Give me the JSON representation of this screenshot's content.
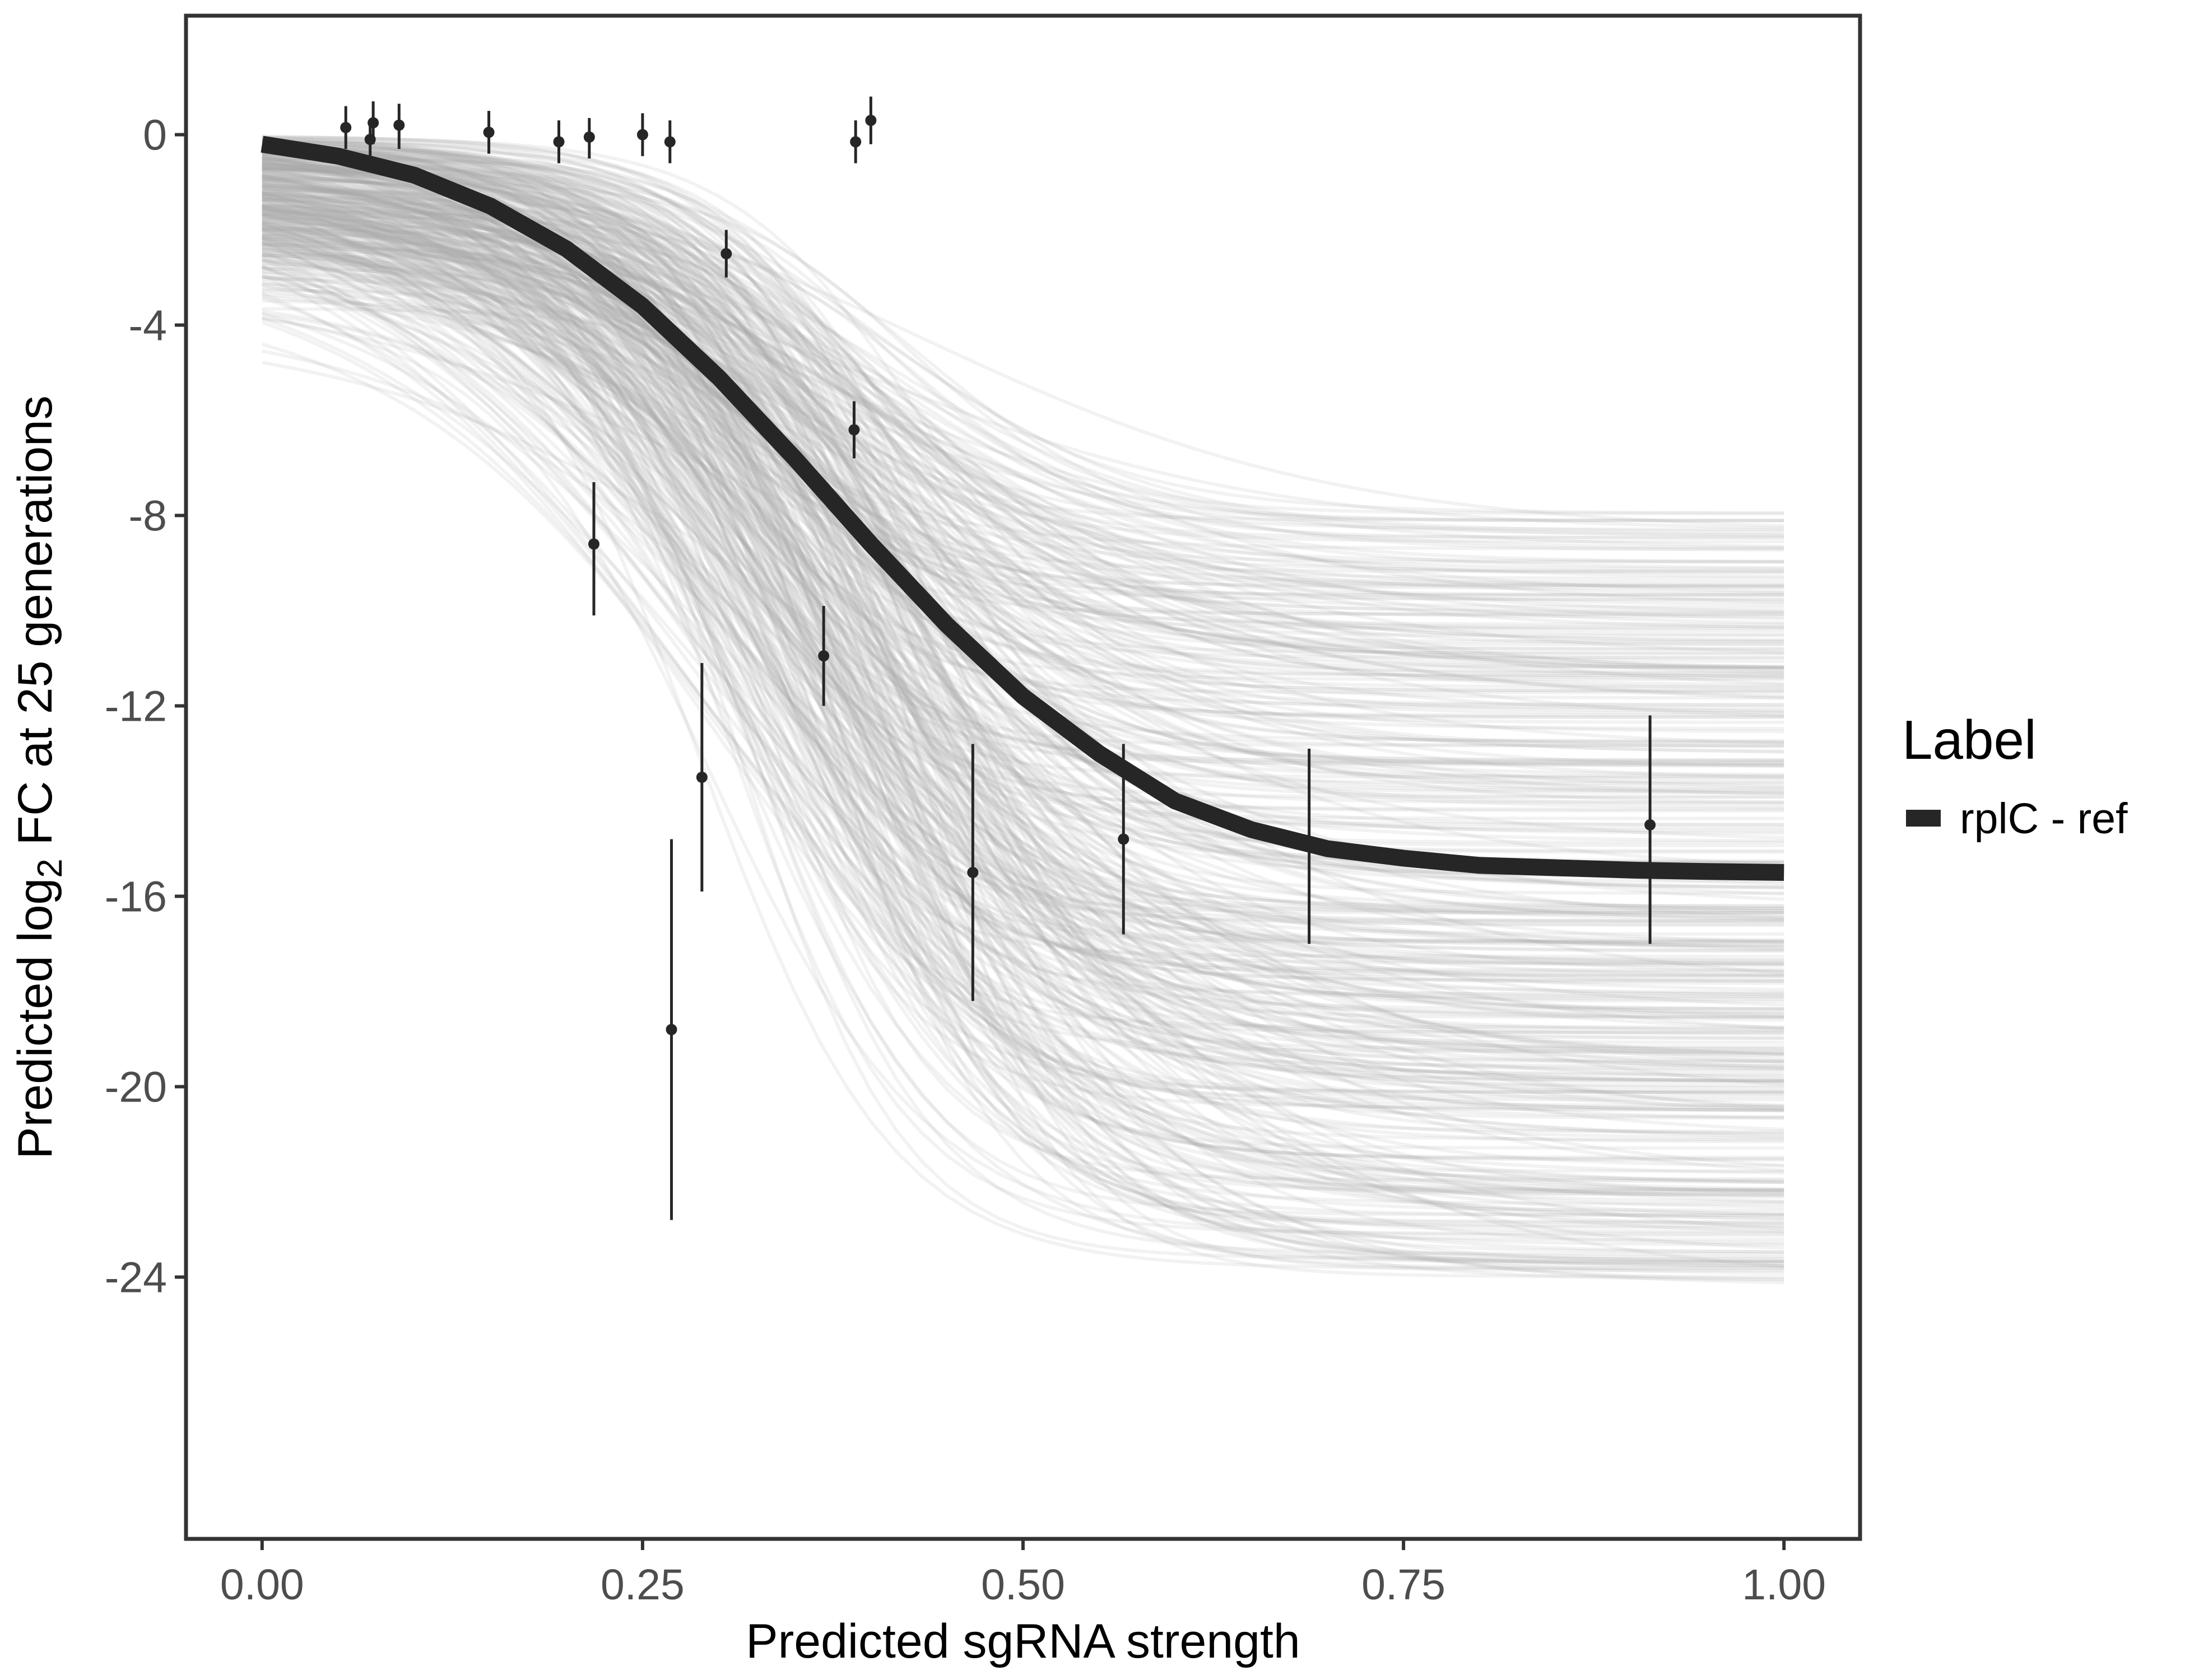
{
  "chart_data": {
    "type": "line",
    "xlabel": "Predicted sgRNA strength",
    "ylabel_parts": {
      "before": "Predicted  log",
      "subscript": "2",
      "after": " FC at 25 generations"
    },
    "xlim": [
      -0.05,
      1.05
    ],
    "ylim": [
      -29.5,
      2.5
    ],
    "x_ticks": [
      0.0,
      0.25,
      0.5,
      0.75,
      1.0
    ],
    "x_tick_labels": [
      "0.00",
      "0.25",
      "0.50",
      "0.75",
      "1.00"
    ],
    "y_ticks": [
      0,
      -4,
      -8,
      -12,
      -16,
      -20,
      -24
    ],
    "y_tick_labels": [
      "0",
      "-4",
      "-8",
      "-12",
      "-16",
      "-20",
      "-24"
    ],
    "grid": false,
    "legend": {
      "title": "Label",
      "position": "right",
      "entries": [
        {
          "label": "rplC - ref",
          "color": "#262626"
        }
      ]
    },
    "fit_curve": {
      "name": "rplC - ref",
      "color": "#262626",
      "x": [
        0.0,
        0.05,
        0.1,
        0.15,
        0.2,
        0.25,
        0.3,
        0.35,
        0.4,
        0.45,
        0.5,
        0.55,
        0.6,
        0.65,
        0.7,
        0.75,
        0.8,
        0.85,
        0.9,
        0.95,
        1.0
      ],
      "y": [
        -0.2,
        -0.45,
        -0.85,
        -1.5,
        -2.4,
        -3.6,
        -5.1,
        -6.8,
        -8.6,
        -10.3,
        -11.8,
        -13.0,
        -14.0,
        -14.6,
        -15.0,
        -15.2,
        -15.35,
        -15.4,
        -15.45,
        -15.48,
        -15.5
      ]
    },
    "posterior_draws": {
      "color": "#aaaaaa",
      "opacity": 0.15,
      "count": 400,
      "y_at_x0_range": [
        -4.5,
        0.0
      ],
      "y_at_x1_range": [
        -24.2,
        -7.8
      ]
    },
    "points": [
      {
        "x": 0.055,
        "y": 0.15,
        "ymin": -0.3,
        "ymax": 0.6
      },
      {
        "x": 0.071,
        "y": -0.1,
        "ymin": -0.5,
        "ymax": 0.3
      },
      {
        "x": 0.073,
        "y": 0.25,
        "ymin": -0.2,
        "ymax": 0.7
      },
      {
        "x": 0.09,
        "y": 0.2,
        "ymin": -0.3,
        "ymax": 0.65
      },
      {
        "x": 0.149,
        "y": 0.05,
        "ymin": -0.4,
        "ymax": 0.5
      },
      {
        "x": 0.195,
        "y": -0.15,
        "ymin": -0.6,
        "ymax": 0.3
      },
      {
        "x": 0.215,
        "y": -0.05,
        "ymin": -0.5,
        "ymax": 0.35
      },
      {
        "x": 0.218,
        "y": -8.6,
        "ymin": -10.1,
        "ymax": -7.3
      },
      {
        "x": 0.25,
        "y": 0.0,
        "ymin": -0.45,
        "ymax": 0.45
      },
      {
        "x": 0.268,
        "y": -0.15,
        "ymin": -0.6,
        "ymax": 0.3
      },
      {
        "x": 0.269,
        "y": -18.8,
        "ymin": -22.8,
        "ymax": -14.8
      },
      {
        "x": 0.289,
        "y": -13.5,
        "ymin": -15.9,
        "ymax": -11.1
      },
      {
        "x": 0.305,
        "y": -2.5,
        "ymin": -3.0,
        "ymax": -2.0
      },
      {
        "x": 0.369,
        "y": -10.95,
        "ymin": -12.0,
        "ymax": -9.9
      },
      {
        "x": 0.389,
        "y": -6.2,
        "ymin": -6.8,
        "ymax": -5.6
      },
      {
        "x": 0.39,
        "y": -0.15,
        "ymin": -0.6,
        "ymax": 0.3
      },
      {
        "x": 0.4,
        "y": 0.3,
        "ymin": -0.2,
        "ymax": 0.8
      },
      {
        "x": 0.467,
        "y": -15.5,
        "ymin": -18.2,
        "ymax": -12.8
      },
      {
        "x": 0.566,
        "y": -14.8,
        "ymin": -16.8,
        "ymax": -12.8
      },
      {
        "x": 0.688,
        "y": -14.9,
        "ymin": -17.0,
        "ymax": -12.9
      },
      {
        "x": 0.912,
        "y": -14.5,
        "ymin": -17.0,
        "ymax": -12.2
      }
    ]
  }
}
